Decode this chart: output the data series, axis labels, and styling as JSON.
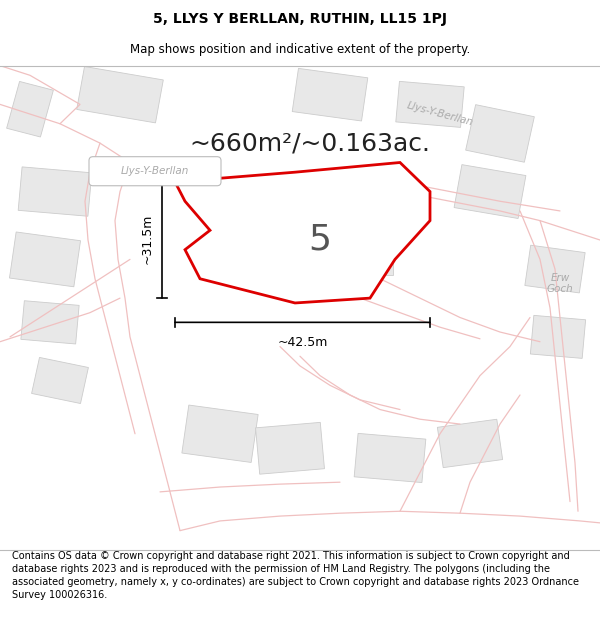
{
  "title_line1": "5, LLYS Y BERLLAN, RUTHIN, LL15 1PJ",
  "title_line2": "Map shows position and indicative extent of the property.",
  "footer_text": "Contains OS data © Crown copyright and database right 2021. This information is subject to Crown copyright and database rights 2023 and is reproduced with the permission of HM Land Registry. The polygons (including the associated geometry, namely x, y co-ordinates) are subject to Crown copyright and database rights 2023 Ordnance Survey 100026316.",
  "area_label": "~660m²/~0.163ac.",
  "property_number": "5",
  "dim_width": "~42.5m",
  "dim_height": "~31.5m",
  "map_bg": "#ffffff",
  "road_line_color": "#f0c0c0",
  "building_face": "#e8e8e8",
  "building_edge": "#cccccc",
  "property_fill": "#ffffff",
  "property_edge": "#dd0000",
  "road_label_color": "#aaaaaa",
  "title_fontsize": 10,
  "footer_fontsize": 7,
  "area_fontsize": 18,
  "dim_fontsize": 9
}
